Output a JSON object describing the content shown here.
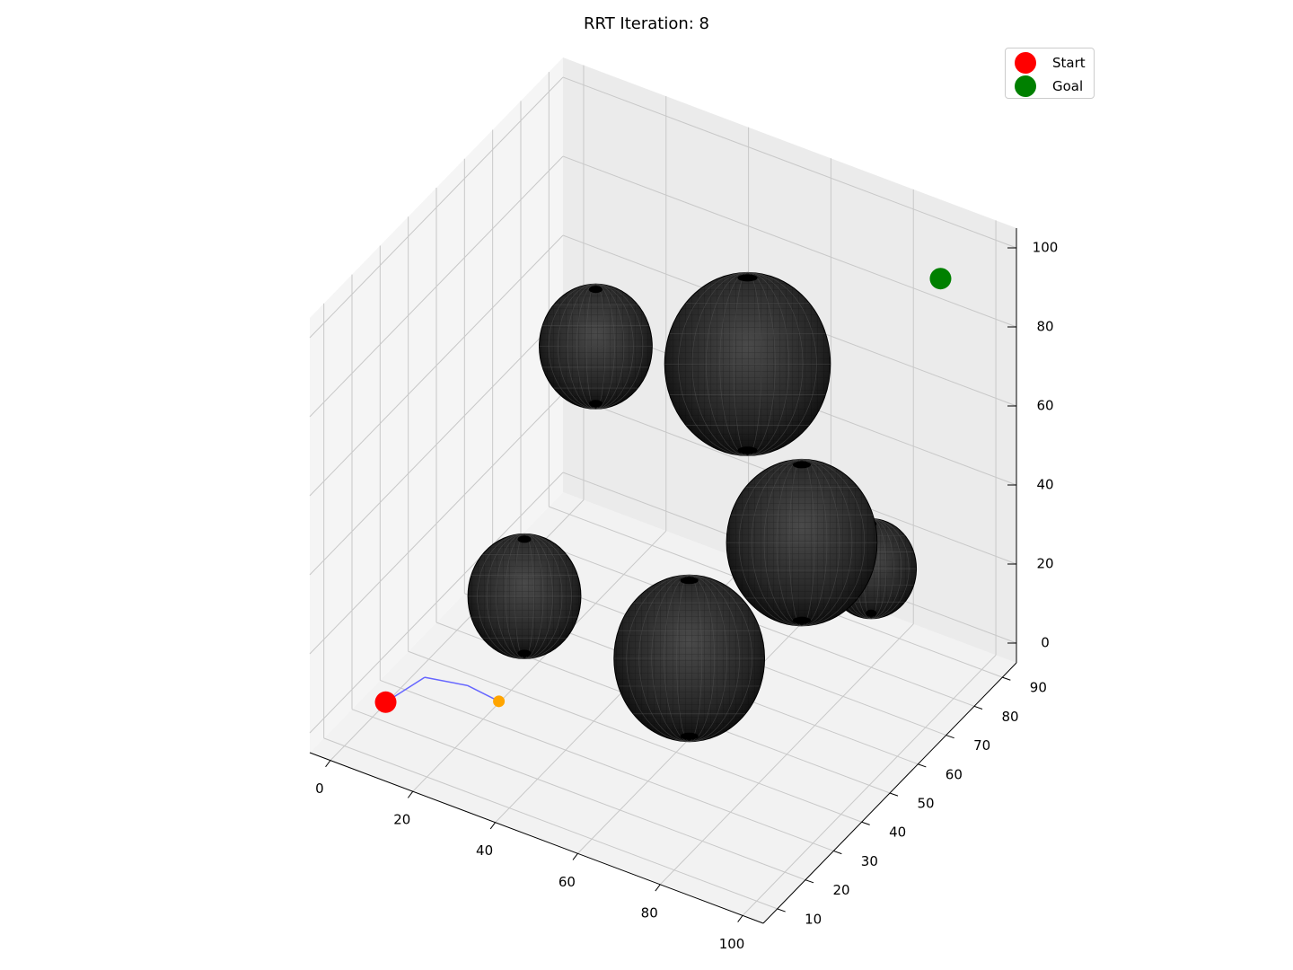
{
  "chart_data": {
    "type": "scatter3d",
    "title": "RRT Iteration: 8",
    "xlim": [
      -5,
      105
    ],
    "ylim": [
      5,
      95
    ],
    "zlim": [
      -5,
      105
    ],
    "x_ticks": [
      0,
      20,
      40,
      60,
      80,
      100
    ],
    "y_ticks": [
      10,
      20,
      30,
      40,
      50,
      60,
      70,
      80,
      90
    ],
    "z_ticks": [
      0,
      20,
      40,
      60,
      80,
      100
    ],
    "grid": true,
    "legend_position": "top-right",
    "series": [
      {
        "name": "Start",
        "color": "#ff0000",
        "points": [
          {
            "x": 10,
            "y": 10,
            "z": 10
          }
        ]
      },
      {
        "name": "Goal",
        "color": "#008000",
        "points": [
          {
            "x": 90,
            "y": 90,
            "z": 90
          }
        ]
      }
    ],
    "tree": {
      "color": "#6666ff",
      "edges": [
        [
          {
            "x": 10,
            "y": 10,
            "z": 10
          },
          {
            "x": 14,
            "y": 18,
            "z": 12
          }
        ],
        [
          {
            "x": 14,
            "y": 18,
            "z": 12
          },
          {
            "x": 23,
            "y": 20,
            "z": 12
          }
        ],
        [
          {
            "x": 23,
            "y": 20,
            "z": 12
          },
          {
            "x": 32,
            "y": 18,
            "z": 13
          }
        ]
      ],
      "newest_node": {
        "x": 32,
        "y": 18,
        "z": 13,
        "color": "#ffa500"
      }
    },
    "obstacles": [
      {
        "center": {
          "x": 30,
          "y": 30,
          "z": 30
        },
        "radius": 15
      },
      {
        "center": {
          "x": 70,
          "y": 30,
          "z": 30
        },
        "radius": 20
      },
      {
        "center": {
          "x": 70,
          "y": 70,
          "z": 30
        },
        "radius": 20
      },
      {
        "center": {
          "x": 80,
          "y": 80,
          "z": 20
        },
        "radius": 12
      },
      {
        "center": {
          "x": 20,
          "y": 70,
          "z": 60
        },
        "radius": 15
      },
      {
        "center": {
          "x": 50,
          "y": 80,
          "z": 60
        },
        "radius": 22
      }
    ],
    "obstacle_color": "#1a1a1a"
  }
}
